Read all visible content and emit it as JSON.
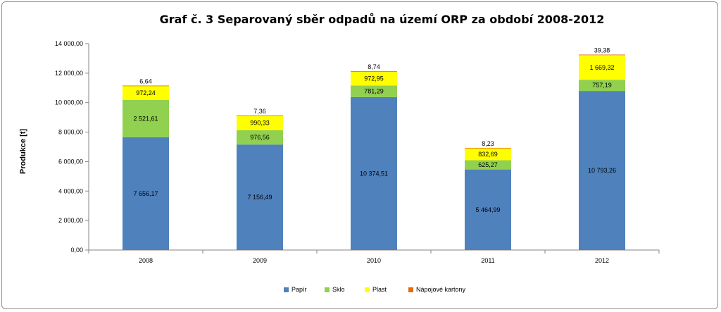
{
  "chart_data": {
    "type": "bar",
    "stacked": true,
    "title": "Graf č. 3 Separovaný sběr odpadů na území ORP za období 2008-2012",
    "ylabel": "Produkce [t]",
    "xlabel": "",
    "ylim": [
      0,
      14000
    ],
    "yticks": [
      "0,00",
      "2 000,00",
      "4 000,00",
      "6 000,00",
      "8 000,00",
      "10 000,00",
      "12 000,00",
      "14 000,00"
    ],
    "categories": [
      "2008",
      "2009",
      "2010",
      "2011",
      "2012"
    ],
    "series": [
      {
        "name": "Papír",
        "color": "#4f81bd",
        "values": [
          7656.17,
          7156.49,
          10374.51,
          5464.99,
          10793.26
        ],
        "labels": [
          "7 656,17",
          "7 156,49",
          "10 374,51",
          "5 464,99",
          "10 793,26"
        ]
      },
      {
        "name": "Sklo",
        "color": "#92d050",
        "values": [
          2521.61,
          976.56,
          781.29,
          625.27,
          757.19
        ],
        "labels": [
          "2 521,61",
          "976,56",
          "781,29",
          "625,27",
          "757,19"
        ]
      },
      {
        "name": "Plast",
        "color": "#ffff00",
        "values": [
          972.24,
          990.33,
          972.95,
          832.69,
          1669.32
        ],
        "labels": [
          "972,24",
          "990,33",
          "972,95",
          "832,69",
          "1 669,32"
        ]
      },
      {
        "name": "Nápojové kartony",
        "color": "#e46c0a",
        "values": [
          6.64,
          7.36,
          8.74,
          8.23,
          39.38
        ],
        "labels": [
          "6,64",
          "7,36",
          "8,74",
          "8,23",
          "39,38"
        ]
      }
    ],
    "grid": false,
    "legend_position": "bottom"
  }
}
